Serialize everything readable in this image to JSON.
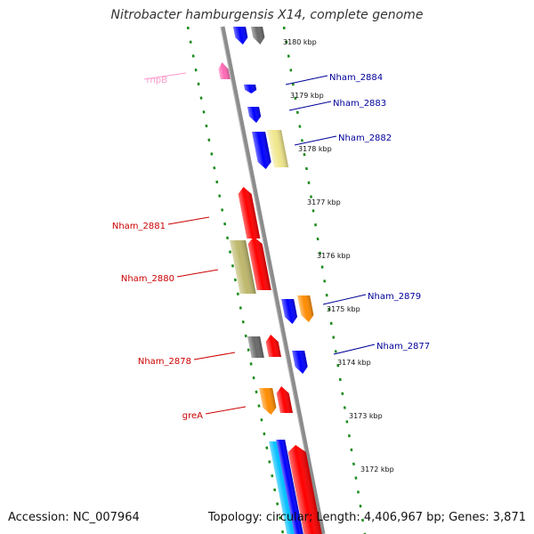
{
  "title": "Nitrobacter hamburgensis X14, complete genome",
  "accession": "Accession: NC_007964",
  "topology": "Topology: circular; Length: 4,406,967 bp; Genes: 3,871",
  "colors": {
    "red": "#ff0000",
    "blue": "#0000ff",
    "orange": "#ff8c00",
    "olive": "#bdb76b",
    "gray": "#696969",
    "pink": "#ff69b4",
    "cream": "#f0e68c",
    "cyan": "#00bfff",
    "label_red": "#cc0000",
    "label_blue": "#000099",
    "label_pink": "#ff99cc"
  },
  "ticks": [
    {
      "label": "3180 kbp"
    },
    {
      "label": "3179 kbp"
    },
    {
      "label": "3178 kbp"
    },
    {
      "label": "3177 kbp"
    },
    {
      "label": "3176 kbp"
    },
    {
      "label": "3175 kbp"
    },
    {
      "label": "3174 kbp"
    },
    {
      "label": "3173 kbp"
    },
    {
      "label": "3172 kbp"
    }
  ],
  "gene_labels": [
    {
      "name": "rnpB",
      "color": "pink"
    },
    {
      "name": "Nham_2884",
      "color": "blue"
    },
    {
      "name": "Nham_2883",
      "color": "blue"
    },
    {
      "name": "Nham_2882",
      "color": "blue"
    },
    {
      "name": "Nham_2881",
      "color": "red"
    },
    {
      "name": "Nham_2880",
      "color": "red"
    },
    {
      "name": "Nham_2879",
      "color": "blue"
    },
    {
      "name": "Nham_2877",
      "color": "blue"
    },
    {
      "name": "Nham_2878",
      "color": "red"
    },
    {
      "name": "greA",
      "color": "red"
    }
  ]
}
